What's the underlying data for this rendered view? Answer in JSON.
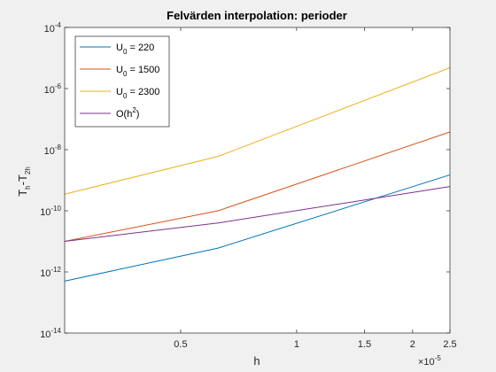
{
  "chart_data": {
    "type": "line",
    "title": "Felvärden interpolation: perioder",
    "xlabel": "h",
    "ylabel": "T_h-T_2h",
    "x_scale": "log",
    "y_scale": "log",
    "x_multiplier": "×10",
    "x_multiplier_exp": "-5",
    "xlim": [
      2.5e-06,
      2.5e-05
    ],
    "ylim": [
      1e-14,
      0.0001
    ],
    "x_ticks": [
      {
        "value": 5e-06,
        "label": "0.5"
      },
      {
        "value": 1e-05,
        "label": "1"
      },
      {
        "value": 1.5e-05,
        "label": "1.5"
      },
      {
        "value": 2e-05,
        "label": "2"
      },
      {
        "value": 2.5e-05,
        "label": "2.5"
      }
    ],
    "y_ticks": [
      {
        "value": 1e-14,
        "base": "10",
        "exp": "-14"
      },
      {
        "value": 1e-12,
        "base": "10",
        "exp": "-12"
      },
      {
        "value": 1e-10,
        "base": "10",
        "exp": "-10"
      },
      {
        "value": 1e-08,
        "base": "10",
        "exp": "-8"
      },
      {
        "value": 1e-06,
        "base": "10",
        "exp": "-6"
      },
      {
        "value": 0.0001,
        "base": "10",
        "exp": "-4"
      }
    ],
    "grid": false,
    "legend_position": "top-left",
    "series": [
      {
        "name": "U_0 = 220",
        "name_parts": {
          "base": "U",
          "sub": "0",
          "rest": " = 220"
        },
        "color": "#0072BD",
        "x": [
          2.5e-06,
          6.25e-06,
          2.5e-05
        ],
        "y": [
          5e-13,
          6e-12,
          1.5e-09
        ]
      },
      {
        "name": "U_0 = 1500",
        "name_parts": {
          "base": "U",
          "sub": "0",
          "rest": " = 1500"
        },
        "color": "#D95319",
        "x": [
          2.5e-06,
          6.25e-06,
          2.5e-05
        ],
        "y": [
          1e-11,
          1e-10,
          3.8e-08
        ]
      },
      {
        "name": "U_0 = 2300",
        "name_parts": {
          "base": "U",
          "sub": "0",
          "rest": " = 2300"
        },
        "color": "#EDB120",
        "x": [
          2.5e-06,
          6.25e-06,
          2.5e-05
        ],
        "y": [
          3.5e-10,
          6e-09,
          4.8e-06
        ]
      },
      {
        "name": "O(h^2)",
        "name_parts": {
          "base": "O(h",
          "sup": "2",
          "rest": ")"
        },
        "color": "#7E2F8E",
        "x": [
          2.5e-06,
          6.25e-06,
          2.5e-05
        ],
        "y": [
          1e-11,
          4e-11,
          6.2e-10
        ]
      }
    ]
  }
}
